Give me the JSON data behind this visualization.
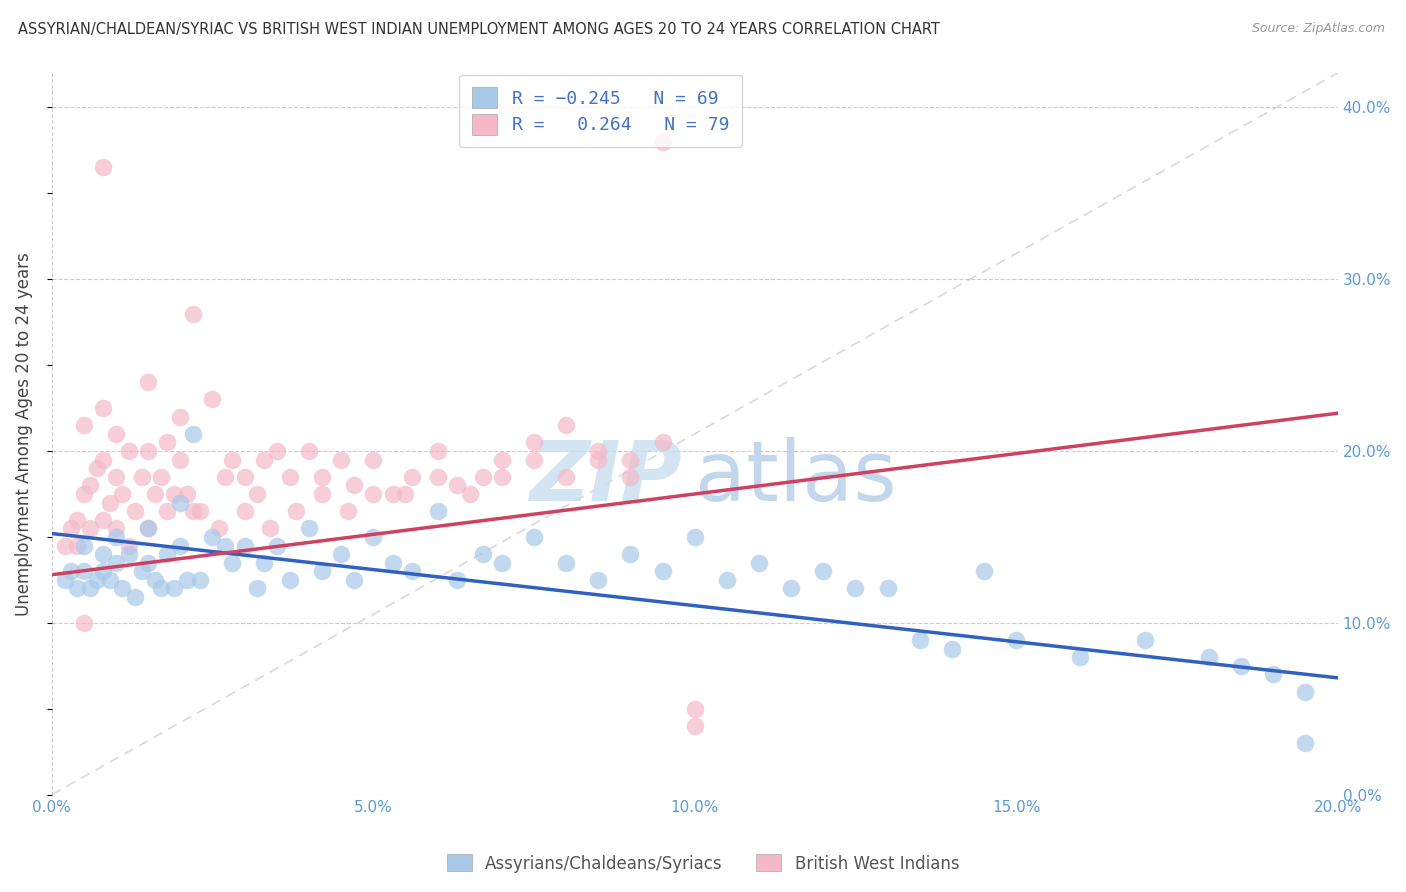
{
  "title": "ASSYRIAN/CHALDEAN/SYRIAC VS BRITISH WEST INDIAN UNEMPLOYMENT AMONG AGES 20 TO 24 YEARS CORRELATION CHART",
  "source": "Source: ZipAtlas.com",
  "ylabel": "Unemployment Among Ages 20 to 24 years",
  "xlim": [
    0.0,
    0.2
  ],
  "ylim": [
    0.0,
    0.42
  ],
  "xticks": [
    0.0,
    0.05,
    0.1,
    0.15,
    0.2
  ],
  "xtick_labels": [
    "0.0%",
    "5.0%",
    "10.0%",
    "15.0%",
    "20.0%"
  ],
  "yticks": [
    0.0,
    0.1,
    0.2,
    0.3,
    0.4
  ],
  "ytick_labels": [
    "0.0%",
    "10.0%",
    "20.0%",
    "30.0%",
    "40.0%"
  ],
  "blue_color": "#a8c8e8",
  "pink_color": "#f4b8c8",
  "trend_blue_color": "#3060c0",
  "trend_pink_color": "#d04060",
  "diag_color": "#c8c8d8",
  "blue_R": "-0.245",
  "blue_N": 69,
  "pink_R": "0.264",
  "pink_N": 79,
  "legend_labels": [
    "Assyrians/Chaldeans/Syriacs",
    "British West Indians"
  ],
  "watermark_zip": "ZIP",
  "watermark_atlas": "atlas",
  "blue_trend_x0": 0.0,
  "blue_trend_y0": 0.152,
  "blue_trend_x1": 0.2,
  "blue_trend_y1": 0.068,
  "pink_trend_x0": 0.0,
  "pink_trend_y0": 0.128,
  "pink_trend_x1": 0.2,
  "pink_trend_y1": 0.222,
  "blue_x": [
    0.002,
    0.003,
    0.004,
    0.005,
    0.005,
    0.006,
    0.007,
    0.008,
    0.008,
    0.009,
    0.01,
    0.01,
    0.011,
    0.012,
    0.013,
    0.014,
    0.015,
    0.015,
    0.016,
    0.017,
    0.018,
    0.019,
    0.02,
    0.02,
    0.021,
    0.022,
    0.023,
    0.025,
    0.027,
    0.028,
    0.03,
    0.032,
    0.033,
    0.035,
    0.037,
    0.04,
    0.042,
    0.045,
    0.047,
    0.05,
    0.053,
    0.056,
    0.06,
    0.063,
    0.067,
    0.07,
    0.075,
    0.08,
    0.085,
    0.09,
    0.095,
    0.1,
    0.105,
    0.11,
    0.115,
    0.12,
    0.125,
    0.13,
    0.135,
    0.14,
    0.145,
    0.15,
    0.16,
    0.17,
    0.18,
    0.185,
    0.19,
    0.195,
    0.195
  ],
  "blue_y": [
    0.125,
    0.13,
    0.12,
    0.13,
    0.145,
    0.12,
    0.125,
    0.13,
    0.14,
    0.125,
    0.135,
    0.15,
    0.12,
    0.14,
    0.115,
    0.13,
    0.135,
    0.155,
    0.125,
    0.12,
    0.14,
    0.12,
    0.145,
    0.17,
    0.125,
    0.21,
    0.125,
    0.15,
    0.145,
    0.135,
    0.145,
    0.12,
    0.135,
    0.145,
    0.125,
    0.155,
    0.13,
    0.14,
    0.125,
    0.15,
    0.135,
    0.13,
    0.165,
    0.125,
    0.14,
    0.135,
    0.15,
    0.135,
    0.125,
    0.14,
    0.13,
    0.15,
    0.125,
    0.135,
    0.12,
    0.13,
    0.12,
    0.12,
    0.09,
    0.085,
    0.13,
    0.09,
    0.08,
    0.09,
    0.08,
    0.075,
    0.07,
    0.03,
    0.06
  ],
  "pink_x": [
    0.002,
    0.003,
    0.004,
    0.005,
    0.005,
    0.006,
    0.007,
    0.008,
    0.008,
    0.009,
    0.01,
    0.01,
    0.011,
    0.012,
    0.013,
    0.014,
    0.015,
    0.015,
    0.016,
    0.017,
    0.018,
    0.019,
    0.02,
    0.02,
    0.021,
    0.022,
    0.023,
    0.025,
    0.027,
    0.028,
    0.03,
    0.032,
    0.033,
    0.035,
    0.037,
    0.04,
    0.042,
    0.045,
    0.047,
    0.05,
    0.053,
    0.056,
    0.06,
    0.063,
    0.067,
    0.07,
    0.075,
    0.08,
    0.085,
    0.09,
    0.004,
    0.006,
    0.008,
    0.01,
    0.012,
    0.015,
    0.018,
    0.022,
    0.026,
    0.03,
    0.034,
    0.038,
    0.042,
    0.046,
    0.05,
    0.055,
    0.06,
    0.065,
    0.07,
    0.075,
    0.08,
    0.085,
    0.09,
    0.095,
    0.095,
    0.1,
    0.1,
    0.005,
    0.008
  ],
  "pink_y": [
    0.145,
    0.155,
    0.16,
    0.175,
    0.215,
    0.18,
    0.19,
    0.195,
    0.225,
    0.17,
    0.185,
    0.21,
    0.175,
    0.2,
    0.165,
    0.185,
    0.2,
    0.24,
    0.175,
    0.185,
    0.205,
    0.175,
    0.195,
    0.22,
    0.175,
    0.28,
    0.165,
    0.23,
    0.185,
    0.195,
    0.185,
    0.175,
    0.195,
    0.2,
    0.185,
    0.2,
    0.185,
    0.195,
    0.18,
    0.195,
    0.175,
    0.185,
    0.2,
    0.18,
    0.185,
    0.195,
    0.205,
    0.185,
    0.195,
    0.185,
    0.145,
    0.155,
    0.16,
    0.155,
    0.145,
    0.155,
    0.165,
    0.165,
    0.155,
    0.165,
    0.155,
    0.165,
    0.175,
    0.165,
    0.175,
    0.175,
    0.185,
    0.175,
    0.185,
    0.195,
    0.215,
    0.2,
    0.195,
    0.205,
    0.38,
    0.04,
    0.05,
    0.1,
    0.365
  ]
}
